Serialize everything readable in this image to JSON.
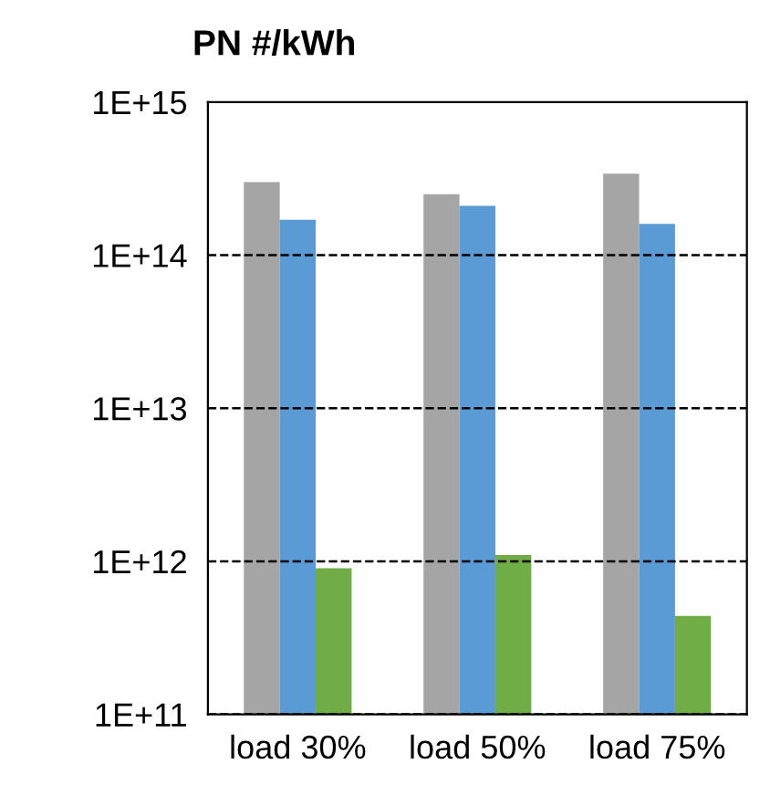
{
  "chart_data": {
    "type": "bar",
    "title": "PN #/kWh",
    "categories": [
      "load 30%",
      "load 50%",
      "load 75%"
    ],
    "series": [
      {
        "color": "#a5a5a5",
        "values": [
          300000000000000.0,
          250000000000000.0,
          340000000000000.0
        ]
      },
      {
        "color": "#5b9bd5",
        "values": [
          170000000000000.0,
          210000000000000.0,
          160000000000000.0
        ]
      },
      {
        "color": "#70ad47",
        "values": [
          900000000000.0,
          1100000000000.0,
          440000000000.0
        ]
      }
    ],
    "log": true,
    "ylim": [
      100000000000.0,
      1000000000000000.0
    ],
    "yticks": [
      {
        "value": 100000000000.0,
        "label": "1E+11"
      },
      {
        "value": 1000000000000.0,
        "label": "1E+12"
      },
      {
        "value": 10000000000000.0,
        "label": "1E+13"
      },
      {
        "value": 100000000000000.0,
        "label": "1E+14"
      },
      {
        "value": 1000000000000000.0,
        "label": "1E+15"
      }
    ],
    "grid": "y",
    "line_style": "dashed",
    "legend": false
  }
}
